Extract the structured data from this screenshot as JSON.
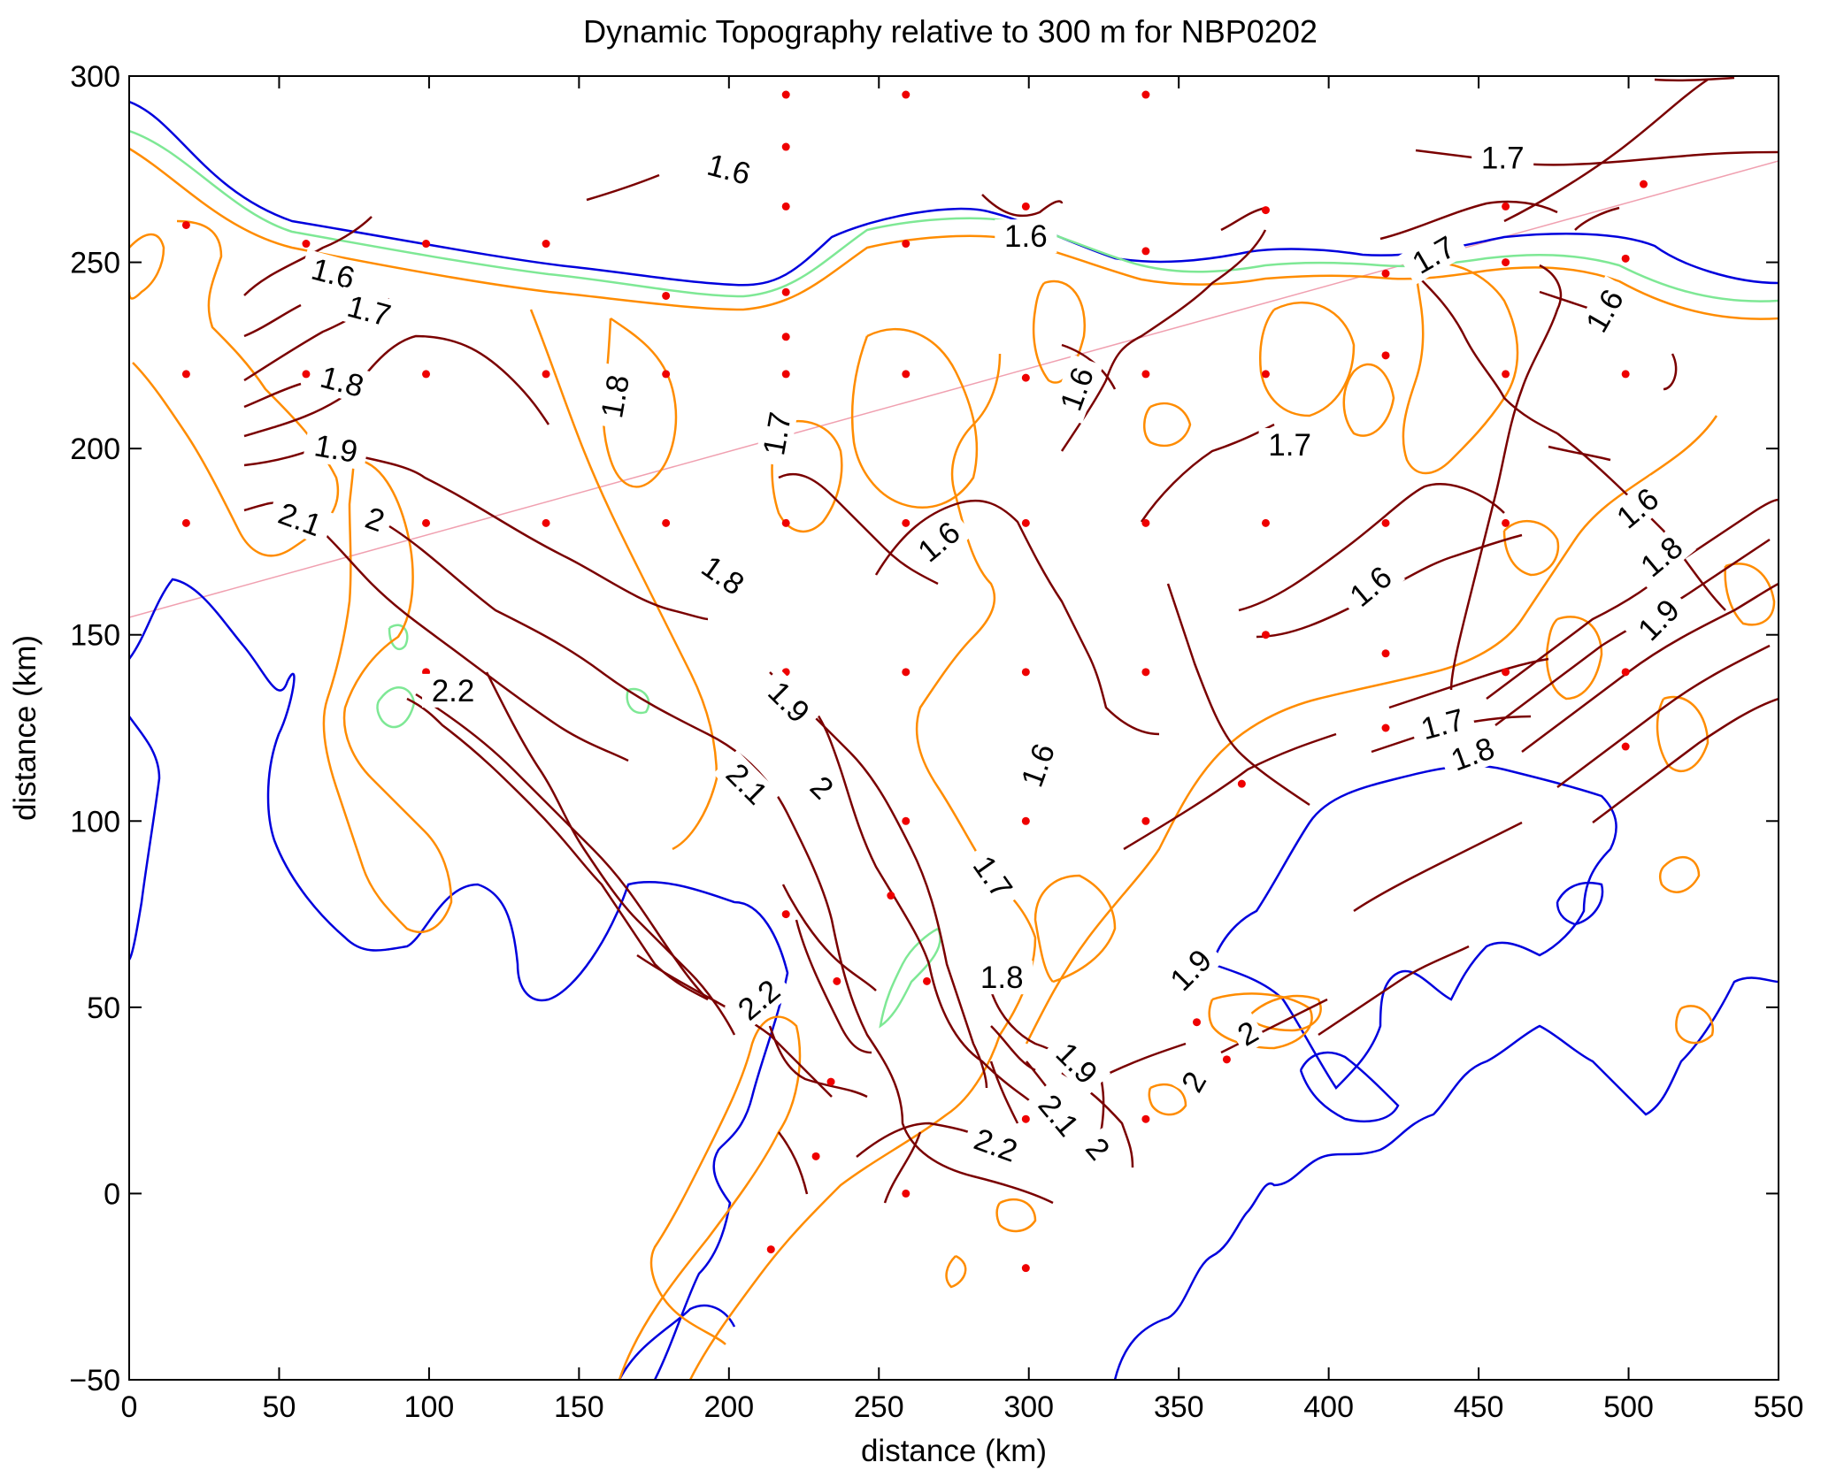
{
  "chart_data": {
    "type": "contour",
    "title": "Dynamic Topography relative to 300 m  for NBP0202",
    "xlabel": "distance (km)",
    "ylabel": "distance (km)",
    "xlim": [
      0,
      550
    ],
    "ylim": [
      -50,
      300
    ],
    "xticks": [
      0,
      50,
      100,
      150,
      200,
      250,
      300,
      350,
      400,
      450,
      500,
      550
    ],
    "yticks": [
      -50,
      0,
      50,
      100,
      150,
      200,
      250,
      300
    ],
    "xtick_labels": [
      "0",
      "50",
      "100",
      "150",
      "200",
      "250",
      "300",
      "350",
      "400",
      "450",
      "500",
      "550"
    ],
    "ytick_labels": [
      "−50",
      "0",
      "50",
      "100",
      "150",
      "200",
      "250",
      "300"
    ],
    "grid": false,
    "colors": {
      "dynamic_topography_contours": "#7a0000",
      "bathymetry_deep": "#0000dd",
      "bathymetry_mid": "#ff8c00",
      "bathymetry_shallow": "#7ee895",
      "stations": "#ee0000",
      "transect_line": "#f0a0b0"
    },
    "stations": [
      [
        19,
        260
      ],
      [
        59,
        255
      ],
      [
        99,
        255
      ],
      [
        139,
        255
      ],
      [
        179,
        241
      ],
      [
        219,
        295
      ],
      [
        219,
        281
      ],
      [
        219,
        265
      ],
      [
        219,
        242
      ],
      [
        219,
        230
      ],
      [
        259,
        295
      ],
      [
        259,
        255
      ],
      [
        299,
        265
      ],
      [
        339,
        295
      ],
      [
        339,
        253
      ],
      [
        379,
        264
      ],
      [
        419,
        247
      ],
      [
        459,
        265
      ],
      [
        459,
        250
      ],
      [
        505,
        271
      ],
      [
        499,
        251
      ],
      [
        19,
        220
      ],
      [
        59,
        220
      ],
      [
        99,
        220
      ],
      [
        139,
        220
      ],
      [
        179,
        220
      ],
      [
        219,
        220
      ],
      [
        259,
        220
      ],
      [
        299,
        219
      ],
      [
        339,
        220
      ],
      [
        379,
        220
      ],
      [
        419,
        225
      ],
      [
        459,
        220
      ],
      [
        499,
        220
      ],
      [
        19,
        180
      ],
      [
        59,
        180
      ],
      [
        99,
        180
      ],
      [
        139,
        180
      ],
      [
        179,
        180
      ],
      [
        219,
        180
      ],
      [
        259,
        180
      ],
      [
        299,
        180
      ],
      [
        339,
        180
      ],
      [
        379,
        180
      ],
      [
        419,
        180
      ],
      [
        459,
        180
      ],
      [
        499,
        180
      ],
      [
        379,
        150
      ],
      [
        419,
        145
      ],
      [
        99,
        140
      ],
      [
        219,
        140
      ],
      [
        259,
        140
      ],
      [
        299,
        140
      ],
      [
        339,
        140
      ],
      [
        459,
        140
      ],
      [
        499,
        140
      ],
      [
        419,
        125
      ],
      [
        499,
        120
      ],
      [
        371,
        110
      ],
      [
        259,
        100
      ],
      [
        299,
        100
      ],
      [
        339,
        100
      ],
      [
        254,
        80
      ],
      [
        219,
        75
      ],
      [
        299,
        60
      ],
      [
        236,
        57
      ],
      [
        266,
        57
      ],
      [
        356,
        46
      ],
      [
        366,
        36
      ],
      [
        234,
        30
      ],
      [
        299,
        20
      ],
      [
        339,
        20
      ],
      [
        229,
        10
      ],
      [
        259,
        0
      ],
      [
        214,
        -15
      ],
      [
        299,
        -20
      ]
    ],
    "contour_levels": [
      "1.6",
      "1.7",
      "1.8",
      "1.9",
      "2",
      "2.1",
      "2.2"
    ],
    "contour_labels": [
      {
        "text": "1.6",
        "x": 200,
        "y": 275,
        "angle": 15
      },
      {
        "text": "1.7",
        "x": 458,
        "y": 278,
        "angle": 0
      },
      {
        "text": "1.6",
        "x": 299,
        "y": 257,
        "angle": 0
      },
      {
        "text": "1.7",
        "x": 435,
        "y": 252,
        "angle": -30
      },
      {
        "text": "1.6",
        "x": 68,
        "y": 247,
        "angle": 15
      },
      {
        "text": "1.7",
        "x": 80,
        "y": 237,
        "angle": 15
      },
      {
        "text": "1.6",
        "x": 492,
        "y": 237,
        "angle": -60
      },
      {
        "text": "1.8",
        "x": 162,
        "y": 214,
        "angle": -80
      },
      {
        "text": "1.6",
        "x": 316,
        "y": 216,
        "angle": -70
      },
      {
        "text": "1.8",
        "x": 71,
        "y": 218,
        "angle": 15
      },
      {
        "text": "1.7",
        "x": 216,
        "y": 204,
        "angle": -80
      },
      {
        "text": "1.9",
        "x": 69,
        "y": 200,
        "angle": 10
      },
      {
        "text": "1.7",
        "x": 387,
        "y": 201,
        "angle": 0
      },
      {
        "text": "2.1",
        "x": 57,
        "y": 181,
        "angle": 20
      },
      {
        "text": "2",
        "x": 82,
        "y": 181,
        "angle": 20
      },
      {
        "text": "1.6",
        "x": 503,
        "y": 184,
        "angle": -40
      },
      {
        "text": "1.6",
        "x": 270,
        "y": 175,
        "angle": -40
      },
      {
        "text": "1.8",
        "x": 198,
        "y": 166,
        "angle": 35
      },
      {
        "text": "1.8",
        "x": 511,
        "y": 171,
        "angle": -40
      },
      {
        "text": "1.6",
        "x": 414,
        "y": 163,
        "angle": -40
      },
      {
        "text": "1.9",
        "x": 510,
        "y": 154,
        "angle": -45
      },
      {
        "text": "2.2",
        "x": 108,
        "y": 135,
        "angle": 0
      },
      {
        "text": "1.9",
        "x": 220,
        "y": 132,
        "angle": 45
      },
      {
        "text": "1.7",
        "x": 438,
        "y": 126,
        "angle": -15
      },
      {
        "text": "1.8",
        "x": 448,
        "y": 118,
        "angle": -20
      },
      {
        "text": "1.6",
        "x": 303,
        "y": 115,
        "angle": -70
      },
      {
        "text": "2.1",
        "x": 206,
        "y": 110,
        "angle": 45
      },
      {
        "text": "2",
        "x": 231,
        "y": 109,
        "angle": 45
      },
      {
        "text": "1.7",
        "x": 288,
        "y": 85,
        "angle": 55
      },
      {
        "text": "1.8",
        "x": 291,
        "y": 58,
        "angle": 0
      },
      {
        "text": "1.9",
        "x": 354,
        "y": 60,
        "angle": -45
      },
      {
        "text": "2.2",
        "x": 210,
        "y": 52,
        "angle": -40
      },
      {
        "text": "2",
        "x": 373,
        "y": 43,
        "angle": -30
      },
      {
        "text": "1.9",
        "x": 316,
        "y": 35,
        "angle": 45
      },
      {
        "text": "2",
        "x": 355,
        "y": 30,
        "angle": -60
      },
      {
        "text": "2.1",
        "x": 310,
        "y": 21,
        "angle": 50
      },
      {
        "text": "2",
        "x": 323,
        "y": 12,
        "angle": 50
      },
      {
        "text": "2.2",
        "x": 289,
        "y": 13,
        "angle": 20
      }
    ]
  }
}
